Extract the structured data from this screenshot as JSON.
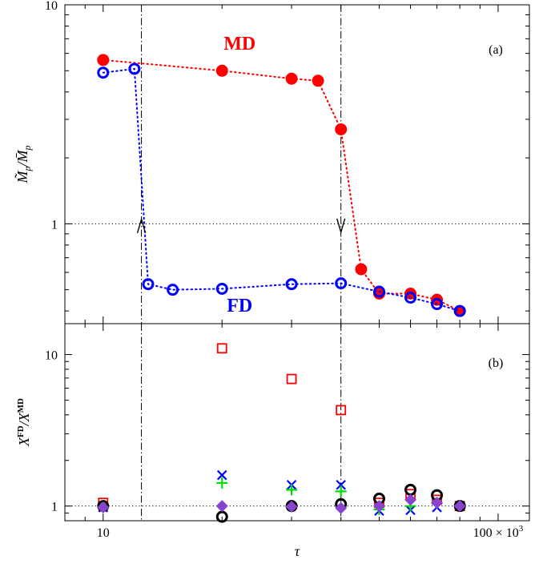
{
  "chart_data": [
    {
      "type": "scatter",
      "panel_tag": "(a)",
      "xlabel": "",
      "ylabel": "M̃p/M̄p",
      "x_scale": "log",
      "y_scale": "log",
      "xlim": [
        8,
        120
      ],
      "ylim": [
        0.35,
        10
      ],
      "x_ticks": [
        10,
        100
      ],
      "x_tick_labels": [
        "",
        ""
      ],
      "y_ticks": [
        1,
        10
      ],
      "y_tick_labels": [
        "1",
        "10"
      ],
      "grid": "dotted horizontal line at y = 1",
      "vlines": [
        12.5,
        40
      ],
      "annotations": [
        {
          "text": "MD",
          "color": "#ff0000"
        },
        {
          "text": "FD",
          "color": "#0000ff"
        }
      ],
      "arrows": [
        {
          "x": 12.5,
          "y": 0.98,
          "direction": "up"
        },
        {
          "x": 40,
          "y": 0.98,
          "direction": "down"
        }
      ],
      "series": [
        {
          "name": "MD",
          "color": "#ff0000",
          "marker": "filled-circle",
          "line": "dotted",
          "x": [
            10,
            20,
            30,
            35,
            40,
            45,
            50,
            60,
            70,
            80
          ],
          "y": [
            5.6,
            5.0,
            4.6,
            4.5,
            2.7,
            0.62,
            0.48,
            0.48,
            0.45,
            0.4
          ]
        },
        {
          "name": "FD",
          "color": "#0000ff",
          "marker": "open-circle",
          "line": "dotted",
          "x": [
            10,
            12,
            13,
            15,
            20,
            30,
            40,
            50,
            60,
            70,
            80
          ],
          "y": [
            4.9,
            5.1,
            0.53,
            0.5,
            0.505,
            0.53,
            0.535,
            0.49,
            0.46,
            0.43,
            0.4
          ]
        }
      ]
    },
    {
      "type": "scatter",
      "panel_tag": "(b)",
      "xlabel": "τ",
      "ylabel": "XFD/XMD",
      "x_scale": "log",
      "y_scale": "log",
      "xlim": [
        8,
        120
      ],
      "ylim": [
        0.8,
        16
      ],
      "x_ticks": [
        10,
        100
      ],
      "x_tick_labels": [
        "10",
        "100 × 10³"
      ],
      "y_ticks": [
        1,
        10
      ],
      "y_tick_labels": [
        "1",
        "10"
      ],
      "grid": "dotted horizontal line at y = 1",
      "vlines": [
        12.5,
        40
      ],
      "series": [
        {
          "color": "#ff0000",
          "marker": "open-square",
          "x": [
            10,
            20,
            30,
            40,
            50,
            60,
            70,
            80
          ],
          "y": [
            1.05,
            11,
            6.9,
            4.3,
            1.05,
            1.2,
            1.1,
            1.0
          ]
        },
        {
          "color": "#0000ff",
          "marker": "cross",
          "x": [
            10,
            20,
            30,
            40,
            50,
            60,
            70,
            80
          ],
          "y": [
            0.98,
            1.6,
            1.38,
            1.38,
            0.93,
            0.94,
            0.98,
            1.0
          ]
        },
        {
          "color": "#00dd00",
          "marker": "plus",
          "x": [
            10,
            20,
            30,
            40,
            50,
            60,
            70,
            80
          ],
          "y": [
            1.0,
            1.42,
            1.28,
            1.25,
            0.95,
            1.0,
            1.05,
            1.0
          ]
        },
        {
          "color": "#000000",
          "marker": "open-circle",
          "x": [
            10,
            20,
            30,
            40,
            50,
            60,
            70,
            80
          ],
          "y": [
            1.0,
            0.85,
            1.0,
            1.03,
            1.12,
            1.28,
            1.18,
            1.0
          ]
        },
        {
          "color": "#8844cc",
          "marker": "filled-diamond",
          "x": [
            10,
            20,
            30,
            40,
            50,
            60,
            70,
            80
          ],
          "y": [
            0.98,
            1.0,
            0.99,
            0.97,
            1.0,
            1.1,
            1.05,
            1.0
          ]
        }
      ]
    }
  ]
}
